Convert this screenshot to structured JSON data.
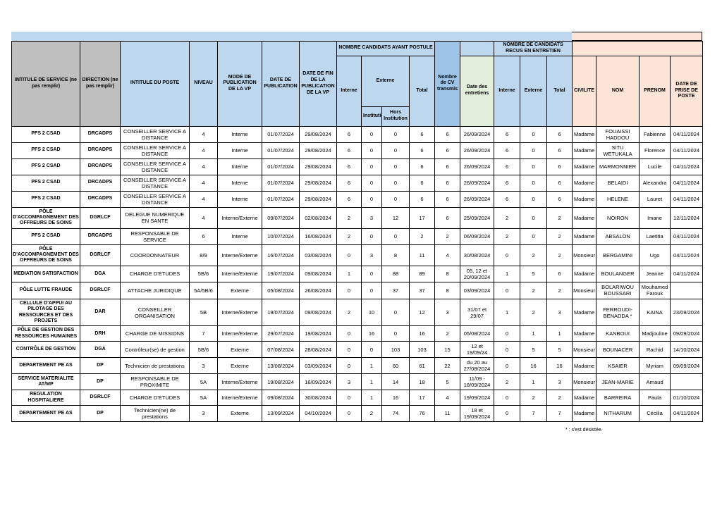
{
  "colors": {
    "header_gray": "#bfbfbf",
    "header_light_blue": "#bdd7ee",
    "header_medium_blue": "#9dc3e6",
    "header_green": "#e2efda",
    "header_peach": "#fce4d6",
    "grid_border": "#000000"
  },
  "header": {
    "service": "INTITULE DE SERVICE (ne pas remplir)",
    "direction": "DIRECTION (ne pas remplir)",
    "poste": "INTITULE DU POSTE",
    "niveau": "NIVEAU",
    "mode": "MODE DE PUBLICATION DE LA VP",
    "date_publication": "DATE DE PUBLICATION",
    "date_fin": "DATE DE FIN DE LA PUBLICATION DE LA VP",
    "group_postule": "NOMBRE CANDIDATS AYANT POSTULE",
    "interne": "Interne",
    "externe": "Externe",
    "institution": "Institution",
    "hors_institution": "Hors Institution",
    "total": "Total",
    "cv_transmis": "Nombre de CV transmis",
    "date_entretiens": "Date des entretiens",
    "group_recus": "NOMBRE DE CANDIDATS RECUS EN ENTRETIEN",
    "recus_interne": "Interne",
    "recus_externe": "Externe",
    "recus_total": "Total",
    "civilite": "CIVILITE",
    "nom": "NOM",
    "prenom": "PRENOM",
    "date_prise": "DATE DE PRISE DE POSTE"
  },
  "table": {
    "boxed_cell": {
      "row_index": 14,
      "col_index": 12
    },
    "rows": [
      [
        "PFS 2 CSAD",
        "DRCADPS",
        "CONSEILLER SERVICE A DISTANCE",
        "4",
        "Interne",
        "01/07/2024",
        "29/08/2024",
        "6",
        "0",
        "0",
        "6",
        "6",
        "26/09/2024",
        "6",
        "0",
        "6",
        "Madame",
        "FOUAISSI HADDOU",
        "Fabienne",
        "04/11/2024"
      ],
      [
        "PFS 2 CSAD",
        "DRCADPS",
        "CONSEILLER SERVICE A DISTANCE",
        "4",
        "Interne",
        "01/07/2024",
        "29/08/2024",
        "6",
        "0",
        "0",
        "6",
        "6",
        "26/09/2024",
        "6",
        "0",
        "6",
        "Madame",
        "SITU WETUKALA",
        "Florence",
        "04/11/2024"
      ],
      [
        "PFS 2 CSAD",
        "DRCADPS",
        "CONSEILLER SERVICE A DISTANCE",
        "4",
        "Interne",
        "01/07/2024",
        "29/08/2024",
        "6",
        "0",
        "0",
        "6",
        "6",
        "26/09/2024",
        "6",
        "0",
        "6",
        "Madame",
        "MARMONNIER",
        "Lucile",
        "04/11/2024"
      ],
      [
        "PFS 2 CSAD",
        "DRCADPS",
        "CONSEILLER SERVICE A DISTANCE",
        "4",
        "Interne",
        "01/07/2024",
        "29/08/2024",
        "6",
        "0",
        "0",
        "6",
        "6",
        "26/09/2024",
        "6",
        "0",
        "6",
        "Madame",
        "BELAIDI",
        "Alexandra",
        "04/11/2024"
      ],
      [
        "PFS 2 CSAD",
        "DRCADPS",
        "CONSEILLER SERVICE A DISTANCE",
        "4",
        "Interne",
        "01/07/2024",
        "29/08/2024",
        "6",
        "0",
        "0",
        "6",
        "6",
        "26/09/2024",
        "6",
        "0",
        "6",
        "Madame",
        "HELENE",
        "Lauret",
        "04/11/2024"
      ],
      [
        "PÔLE D'ACCOMPAGNEMENT DES OFFREURS DE SOINS",
        "DGRLCF",
        "DELEGUE NUMERIQUE EN SANTE",
        "4",
        "Interne/Externe",
        "09/07/2024",
        "02/08/2024",
        "2",
        "3",
        "12",
        "17",
        "6",
        "25/09/2024",
        "2",
        "0",
        "2",
        "Madame",
        "NOIRON",
        "Imane",
        "12/11/2024"
      ],
      [
        "PFS 2 CSAD",
        "DRCADPS",
        "RESPONSABLE DE SERVICE",
        "6",
        "Interne",
        "10/07/2024",
        "16/08/2024",
        "2",
        "0",
        "0",
        "2",
        "2",
        "06/09/2024",
        "2",
        "0",
        "2",
        "Madame",
        "ABSALON",
        "Laetitia",
        "04/11/2024"
      ],
      [
        "PÔLE D'ACCOMPAGNEMENT DES OFFREURS DE SOINS",
        "DGRLCF",
        "COORDONNATEUR",
        "8/9",
        "Interne/Externe",
        "16/07/2024",
        "03/08/2024",
        "0",
        "3",
        "8",
        "11",
        "4",
        "30/08/2024",
        "0",
        "2",
        "2",
        "Monsieur",
        "BERGAMINI",
        "Ugo",
        "04/11/2024"
      ],
      [
        "MEDIATION SATISFACTION",
        "DGA",
        "CHARGE D'ETUDES",
        "5B/6",
        "Interne/Externe",
        "19/07/2024",
        "09/08/2024",
        "1",
        "0",
        "88",
        "89",
        "8",
        "05, 12 et 20/09/2024",
        "1",
        "5",
        "6",
        "Madame",
        "BOULANGER",
        "Jeanne",
        "04/11/2024"
      ],
      [
        "PÔLE LUTTE FRAUDE",
        "DGRLCF",
        "ATTACHE JURIDIQUE",
        "5A/5B/6",
        "Externe",
        "05/08/2024",
        "26/08/2024",
        "0",
        "0",
        "37",
        "37",
        "8",
        "03/09/2024",
        "0",
        "2",
        "2",
        "Monsieur",
        "BOLARIWOU BOUSSARI",
        "Mouhamed Farouk",
        ""
      ],
      [
        "CELLULE D'APPUI AU PILOTAGE DES RESSOURCES ET DES PROJETS",
        "DAR",
        "CONSEILLER ORGANISATION",
        "5B",
        "Interne/Externe",
        "19/07/2024",
        "09/08/2024",
        "2",
        "10",
        "0",
        "12",
        "3",
        "31/07 et 29/07",
        "1",
        "2",
        "3",
        "Madame",
        "FERROUDI- BENADDA *",
        "KAINA",
        "23/09/2024"
      ],
      [
        "PÔLE DE GESTION DES RESSOURCES HUMAINES",
        "DRH",
        "CHARGE DE MISSIONS",
        "7",
        "Interne/Externe",
        "29/07/2024",
        "19/08/2024",
        "0",
        "16",
        "0",
        "16",
        "2",
        "05/08/2024",
        "0",
        "1",
        "1",
        "Madame",
        "KANBOUI",
        "Madjouline",
        "09/09/2024"
      ],
      [
        "CONTRÔLE DE GESTION",
        "DGA",
        "Contrôleur(se) de gestion",
        "5B/6",
        "Externe",
        "07/08/2024",
        "28/08/2024",
        "0",
        "0",
        "103",
        "103",
        "15",
        "12 et 19/09/24",
        "0",
        "5",
        "5",
        "Monsieur",
        "BOUNACER",
        "Rachid",
        "14/10/2024"
      ],
      [
        "DEPARTEMENT PE AS",
        "DP",
        "Technicien de prestations",
        "3",
        "Externe",
        "13/08/2024",
        "03/09/2024",
        "0",
        "1",
        "60",
        "61",
        "22",
        "du 20 au 27/08/2024",
        "0",
        "16",
        "16",
        "Madame",
        "KSAIER",
        "Myriam",
        "09/09/2024"
      ],
      [
        "SERVICE MATERIALITE AT/MP",
        "DP",
        "RESPONSABLE DE PROXIMITE",
        "5A",
        "Interne/Externe",
        "19/08/2024",
        "16/09/2024",
        "3",
        "1",
        "14",
        "18",
        "5",
        "11/09 - 18/09/2024",
        "2",
        "1",
        "3",
        "Monsieur",
        "JEAN-MARIE",
        "Arnaud",
        ""
      ],
      [
        "REGULATION HOSPITALIERE",
        "DGRLCF",
        "CHARGE D'ETUDES",
        "5A",
        "Interne/Externe",
        "09/08/2024",
        "30/08/2024",
        "0",
        "1",
        "16",
        "17",
        "4",
        "19/09/2024",
        "0",
        "2",
        "2",
        "Madame",
        "BARREIRA",
        "Paula",
        "01/10/2024"
      ],
      [
        "DEPARTEMENT PE AS",
        "DP",
        "Technicien(ne) de prestations",
        "3",
        "Externe",
        "13/09/2024",
        "04/10/2024",
        "0",
        "2",
        "74",
        "76",
        "11",
        "18 et 19/09/2024",
        "0",
        "7",
        "7",
        "Madame",
        "NITHARUM",
        "Cécilia",
        "04/11/2024"
      ]
    ]
  },
  "footnote": "* : s'est désistée."
}
